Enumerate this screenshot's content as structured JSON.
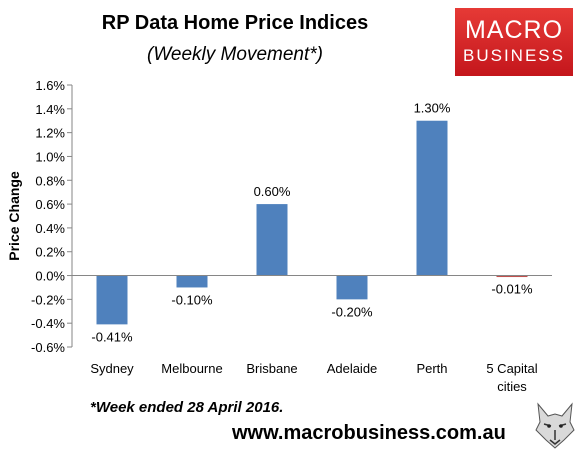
{
  "header": {
    "title": "RP Data Home Price Indices",
    "subtitle": "(Weekly Movement*)"
  },
  "logo": {
    "line1": "MACRO",
    "line2": "BUSINESS",
    "icon": "wolf-head-icon"
  },
  "footer": {
    "footnote": "*Week ended 28 April 2016.",
    "website": "www.macrobusiness.com.au"
  },
  "colors": {
    "bar": "#4f81bd",
    "negative_small": "#c0504d",
    "logo_bg": "#d42a27"
  },
  "chart_data": {
    "type": "bar",
    "title": "RP Data Home Price Indices",
    "subtitle": "(Weekly Movement*)",
    "xlabel": "",
    "ylabel": "Price Change",
    "categories": [
      [
        "Sydney"
      ],
      [
        "Melbourne"
      ],
      [
        "Brisbane"
      ],
      [
        "Adelaide"
      ],
      [
        "Perth"
      ],
      [
        "5 Capital",
        "cities"
      ]
    ],
    "values": [
      -0.41,
      -0.1,
      0.6,
      -0.2,
      1.3,
      -0.01
    ],
    "labels": [
      "-0.41%",
      "-0.10%",
      "0.60%",
      "-0.20%",
      "1.30%",
      "-0.01%"
    ],
    "ylim": [
      -0.6,
      1.6
    ],
    "yticks": [
      1.6,
      1.4,
      1.2,
      1.0,
      0.8,
      0.6,
      0.4,
      0.2,
      0.0,
      -0.2,
      -0.4,
      -0.6
    ],
    "ytick_labels": [
      "1.6%",
      "1.4%",
      "1.2%",
      "1.0%",
      "0.8%",
      "0.6%",
      "0.4%",
      "0.2%",
      "0.0%",
      "-0.2%",
      "-0.4%",
      "-0.6%"
    ],
    "grid": false,
    "legend": "none"
  }
}
